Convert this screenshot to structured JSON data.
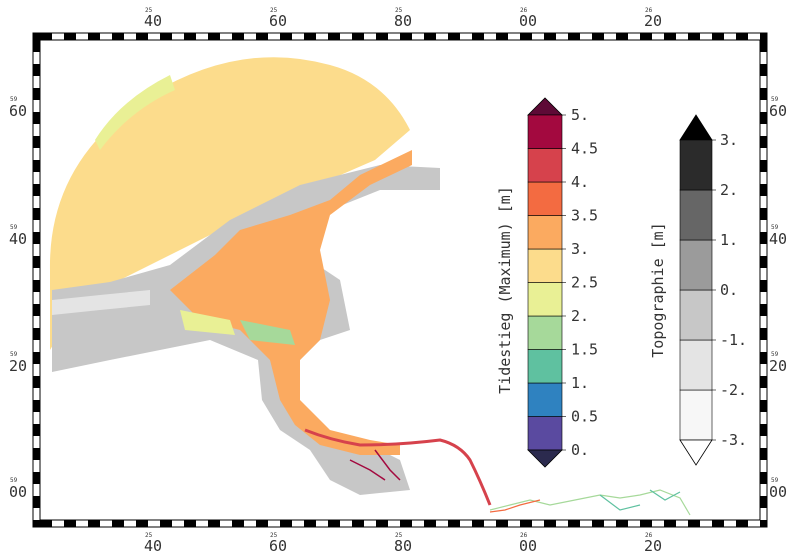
{
  "map": {
    "top_ticks": [
      {
        "small": "25",
        "big": "40"
      },
      {
        "small": "25",
        "big": "60"
      },
      {
        "small": "25",
        "big": "80"
      },
      {
        "small": "26",
        "big": "00"
      },
      {
        "small": "26",
        "big": "20"
      }
    ],
    "bottom_ticks": [
      {
        "small": "25",
        "big": "40"
      },
      {
        "small": "25",
        "big": "60"
      },
      {
        "small": "25",
        "big": "80"
      },
      {
        "small": "26",
        "big": "00"
      },
      {
        "small": "26",
        "big": "20"
      }
    ],
    "left_ticks": [
      {
        "small": "59",
        "big": "60"
      },
      {
        "small": "59",
        "big": "40"
      },
      {
        "small": "59",
        "big": "20"
      },
      {
        "small": "59",
        "big": "00"
      }
    ],
    "right_ticks": [
      {
        "small": "59",
        "big": "60"
      },
      {
        "small": "59",
        "big": "40"
      },
      {
        "small": "59",
        "big": "20"
      },
      {
        "small": "59",
        "big": "00"
      }
    ]
  },
  "colorbar_tide": {
    "title": "Tidestieg (Maximum) [m]",
    "colors": [
      "#5a4aa0",
      "#2f82c0",
      "#5fc1a0",
      "#a6d99a",
      "#e9f095",
      "#fcdc8c",
      "#fbaa60",
      "#f36b41",
      "#d6424c",
      "#a3093f"
    ],
    "over_color": "#5e0a36",
    "under_color": "#2b2a4e",
    "labels": [
      "5.",
      "4.5",
      "4.",
      "3.5",
      "3.",
      "2.5",
      "2.",
      "1.5",
      "1.",
      "0.5",
      "0."
    ]
  },
  "colorbar_topo": {
    "title": "Topographie [m]",
    "colors": [
      "#f7f7f7",
      "#e4e4e4",
      "#c7c7c7",
      "#9b9b9b",
      "#666666",
      "#2b2b2b"
    ],
    "over_color": "#000000",
    "under_color": "#ffffff",
    "labels": [
      "3.",
      "2.",
      "1.",
      "0.",
      "-1.",
      "-2.",
      "-3."
    ]
  }
}
